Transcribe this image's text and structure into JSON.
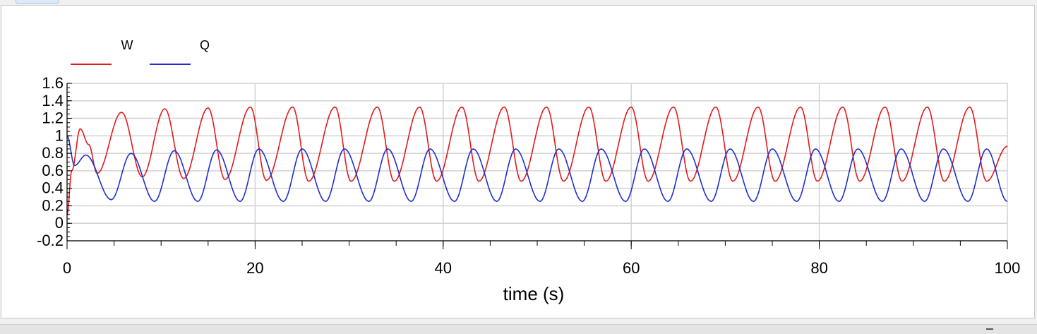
{
  "chart_data": {
    "type": "line",
    "xlabel": "time (s)",
    "ylabel": "",
    "xlim": [
      0,
      100
    ],
    "ylim": [
      -0.2,
      1.6
    ],
    "xticks": [
      "0",
      "20",
      "40",
      "60",
      "80",
      "100"
    ],
    "yticks": [
      "-0.2",
      "0",
      "0.2",
      "0.4",
      "0.6",
      "0.8",
      "1",
      "1.2",
      "1.4",
      "1.6"
    ],
    "grid": true,
    "legend_position": "top-left",
    "series": [
      {
        "name": "W",
        "color": "#e31a1c",
        "x": [
          0,
          0.5,
          1.4,
          2.3,
          3.2,
          5.8,
          8.0,
          10.4,
          12.4,
          15.0,
          16.8,
          19.5,
          21.2,
          24.0,
          25.7,
          28.5,
          30.2,
          33.0,
          34.8,
          37.5,
          39.3,
          42.0,
          43.8,
          46.5,
          48.3,
          51.0,
          52.8,
          55.5,
          57.3,
          60.0,
          61.8,
          64.5,
          66.3,
          69.0,
          70.8,
          73.5,
          75.3,
          78.0,
          79.8,
          82.5,
          84.3,
          87.0,
          88.8,
          91.5,
          93.3,
          96.0,
          97.8,
          100
        ],
        "y": [
          0.1,
          0.6,
          1.08,
          0.9,
          0.57,
          1.27,
          0.53,
          1.31,
          0.51,
          1.32,
          0.5,
          1.33,
          0.49,
          1.33,
          0.48,
          1.33,
          0.48,
          1.33,
          0.48,
          1.33,
          0.48,
          1.33,
          0.48,
          1.33,
          0.48,
          1.33,
          0.48,
          1.33,
          0.48,
          1.33,
          0.48,
          1.33,
          0.48,
          1.33,
          0.48,
          1.33,
          0.48,
          1.33,
          0.48,
          1.33,
          0.48,
          1.33,
          0.48,
          1.33,
          0.48,
          1.33,
          0.48,
          0.88
        ]
      },
      {
        "name": "Q",
        "color": "#1f2fd0",
        "x": [
          0,
          0.8,
          2.0,
          4.7,
          6.8,
          9.3,
          11.4,
          13.9,
          15.9,
          18.4,
          20.4,
          23.0,
          25.0,
          27.5,
          29.5,
          32.1,
          34.1,
          36.6,
          38.6,
          41.2,
          43.2,
          45.7,
          47.7,
          50.3,
          52.3,
          54.8,
          56.8,
          59.4,
          61.4,
          63.9,
          65.9,
          68.5,
          70.5,
          73.0,
          75.0,
          77.6,
          79.6,
          82.1,
          84.1,
          86.7,
          88.7,
          91.2,
          93.2,
          95.8,
          97.8,
          100
        ],
        "y": [
          1.0,
          0.66,
          0.78,
          0.27,
          0.8,
          0.25,
          0.83,
          0.25,
          0.84,
          0.25,
          0.85,
          0.25,
          0.85,
          0.25,
          0.85,
          0.25,
          0.85,
          0.25,
          0.85,
          0.25,
          0.85,
          0.25,
          0.85,
          0.25,
          0.85,
          0.25,
          0.85,
          0.25,
          0.85,
          0.25,
          0.85,
          0.25,
          0.85,
          0.25,
          0.85,
          0.25,
          0.85,
          0.25,
          0.85,
          0.25,
          0.85,
          0.25,
          0.85,
          0.25,
          0.85,
          0.25
        ]
      }
    ]
  }
}
